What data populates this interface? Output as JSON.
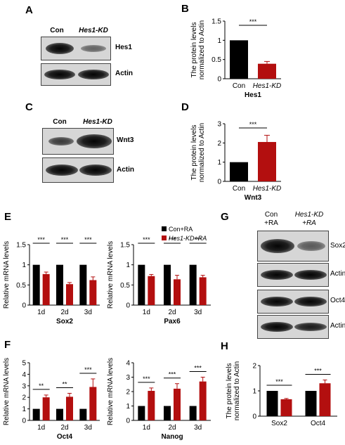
{
  "panels": {
    "A": {
      "letter": "A",
      "lanes": [
        "Con",
        "Hes1-KD"
      ],
      "blots": [
        {
          "label": "Hes1",
          "intensity": [
            1.0,
            0.45
          ]
        },
        {
          "label": "Actin",
          "intensity": [
            1.0,
            1.0
          ]
        }
      ]
    },
    "B": {
      "letter": "B"
    },
    "C": {
      "letter": "C",
      "lanes": [
        "Con",
        "Hes1-KD"
      ],
      "blots": [
        {
          "label": "Wnt3",
          "intensity": [
            0.55,
            1.0
          ]
        },
        {
          "label": "Actin",
          "intensity": [
            1.0,
            1.0
          ]
        }
      ]
    },
    "D": {
      "letter": "D"
    },
    "E": {
      "letter": "E"
    },
    "F": {
      "letter": "F"
    },
    "G": {
      "letter": "G",
      "lanes": [
        {
          "line1": "Con",
          "line2": "+RA"
        },
        {
          "line1": "Hes1-KD",
          "line2": "+RA"
        }
      ],
      "blots": [
        {
          "label": "Sox2",
          "intensity": [
            1.0,
            0.55
          ]
        },
        {
          "label": "Actin",
          "intensity": [
            1.0,
            1.0
          ]
        },
        {
          "label": "Oct4",
          "intensity": [
            1.0,
            1.0
          ]
        },
        {
          "label": "Actin",
          "intensity": [
            1.0,
            0.95
          ]
        }
      ]
    },
    "H": {
      "letter": "H"
    }
  },
  "chart_data": [
    {
      "id": "B",
      "type": "bar",
      "categories": [
        "Con",
        "Hes1-KD"
      ],
      "values": [
        1.0,
        0.39
      ],
      "errors": [
        0,
        0.06
      ],
      "colors": [
        "#000000",
        "#b30f0f"
      ],
      "ylabel_lines": [
        "The protein levels",
        "normalized to Actin"
      ],
      "xlabel": "Hes1",
      "ylim": [
        0,
        1.5
      ],
      "yticks": [
        "0",
        "0.5",
        "1",
        "1.5"
      ],
      "significance": [
        "***"
      ]
    },
    {
      "id": "D",
      "type": "bar",
      "categories": [
        "Con",
        "Hes1-KD"
      ],
      "values": [
        1.0,
        2.05
      ],
      "errors": [
        0,
        0.35
      ],
      "colors": [
        "#000000",
        "#b30f0f"
      ],
      "ylabel_lines": [
        "The protein levels",
        "normalized to Actin"
      ],
      "xlabel": "Wnt3",
      "ylim": [
        0,
        3
      ],
      "yticks": [
        "0",
        "1",
        "2",
        "3"
      ],
      "significance": [
        "***"
      ]
    },
    {
      "id": "E1",
      "type": "bar",
      "categories": [
        "1d",
        "2d",
        "3d"
      ],
      "series": [
        {
          "name": "Con+RA",
          "values": [
            1.0,
            1.0,
            1.0
          ],
          "errors": [
            0,
            0,
            0
          ],
          "color": "#000000"
        },
        {
          "name": "Hes1-KD+RA",
          "values": [
            0.77,
            0.52,
            0.62
          ],
          "errors": [
            0.05,
            0.04,
            0.08
          ],
          "color": "#b30f0f"
        }
      ],
      "ylabel": "Relative mRNA levels",
      "xlabel": "Sox2",
      "ylim": [
        0,
        1.5
      ],
      "yticks": [
        "0",
        "0.5",
        "1",
        "1.5"
      ],
      "significance": [
        "***",
        "***",
        "***"
      ]
    },
    {
      "id": "E2",
      "type": "bar",
      "categories": [
        "1d",
        "2d",
        "3d"
      ],
      "series": [
        {
          "name": "Con+RA",
          "values": [
            1.0,
            1.0,
            1.0
          ],
          "errors": [
            0,
            0,
            0
          ],
          "color": "#000000"
        },
        {
          "name": "Hes1-KD+RA",
          "values": [
            0.72,
            0.64,
            0.69
          ],
          "errors": [
            0.04,
            0.1,
            0.05
          ],
          "color": "#b30f0f"
        }
      ],
      "ylabel": "Relative mRNA levels",
      "xlabel": "Pax6",
      "ylim": [
        0,
        1.5
      ],
      "yticks": [
        "0",
        "0.5",
        "1",
        "1.5"
      ],
      "significance": [
        "***",
        "***",
        "***"
      ],
      "legend": [
        "Con+RA",
        "Hes1-KD+RA"
      ]
    },
    {
      "id": "F1",
      "type": "bar",
      "categories": [
        "1d",
        "2d",
        "3d"
      ],
      "series": [
        {
          "name": "Con+RA",
          "values": [
            1.0,
            1.0,
            1.0
          ],
          "errors": [
            0,
            0,
            0
          ],
          "color": "#000000"
        },
        {
          "name": "Hes1-KD+RA",
          "values": [
            2.0,
            2.05,
            2.9
          ],
          "errors": [
            0.2,
            0.3,
            0.7
          ],
          "color": "#b30f0f"
        }
      ],
      "ylabel": "Relative mRNA levels",
      "xlabel": "Oct4",
      "ylim": [
        0,
        5
      ],
      "yticks": [
        "0",
        "1",
        "2",
        "3",
        "4",
        "5"
      ],
      "significance": [
        "**",
        "**",
        "***"
      ]
    },
    {
      "id": "F2",
      "type": "bar",
      "categories": [
        "1d",
        "2d",
        "3d"
      ],
      "series": [
        {
          "name": "Con+RA",
          "values": [
            1.0,
            1.0,
            1.0
          ],
          "errors": [
            0,
            0,
            0
          ],
          "color": "#000000"
        },
        {
          "name": "Hes1-KD+RA",
          "values": [
            2.05,
            2.2,
            2.7
          ],
          "errors": [
            0.2,
            0.35,
            0.3
          ],
          "color": "#b30f0f"
        }
      ],
      "ylabel": "Relative mRNA levels",
      "xlabel": "Nanog",
      "ylim": [
        0,
        4
      ],
      "yticks": [
        "0",
        "1",
        "2",
        "3",
        "4"
      ],
      "significance": [
        "***",
        "***",
        "***"
      ]
    },
    {
      "id": "H",
      "type": "bar",
      "categories": [
        "Sox2",
        "Oct4"
      ],
      "series": [
        {
          "name": "Con+RA",
          "values": [
            1.0,
            1.0
          ],
          "errors": [
            0,
            0
          ],
          "color": "#000000"
        },
        {
          "name": "Hes1-KD+RA",
          "values": [
            0.67,
            1.3
          ],
          "errors": [
            0.03,
            0.13
          ],
          "color": "#b30f0f"
        }
      ],
      "ylabel_lines": [
        "The protein levels",
        "normalized to Actin"
      ],
      "xlabel": "",
      "ylim": [
        0,
        2
      ],
      "yticks": [
        "0",
        "1",
        "2"
      ],
      "significance": [
        "***",
        "***"
      ]
    }
  ]
}
